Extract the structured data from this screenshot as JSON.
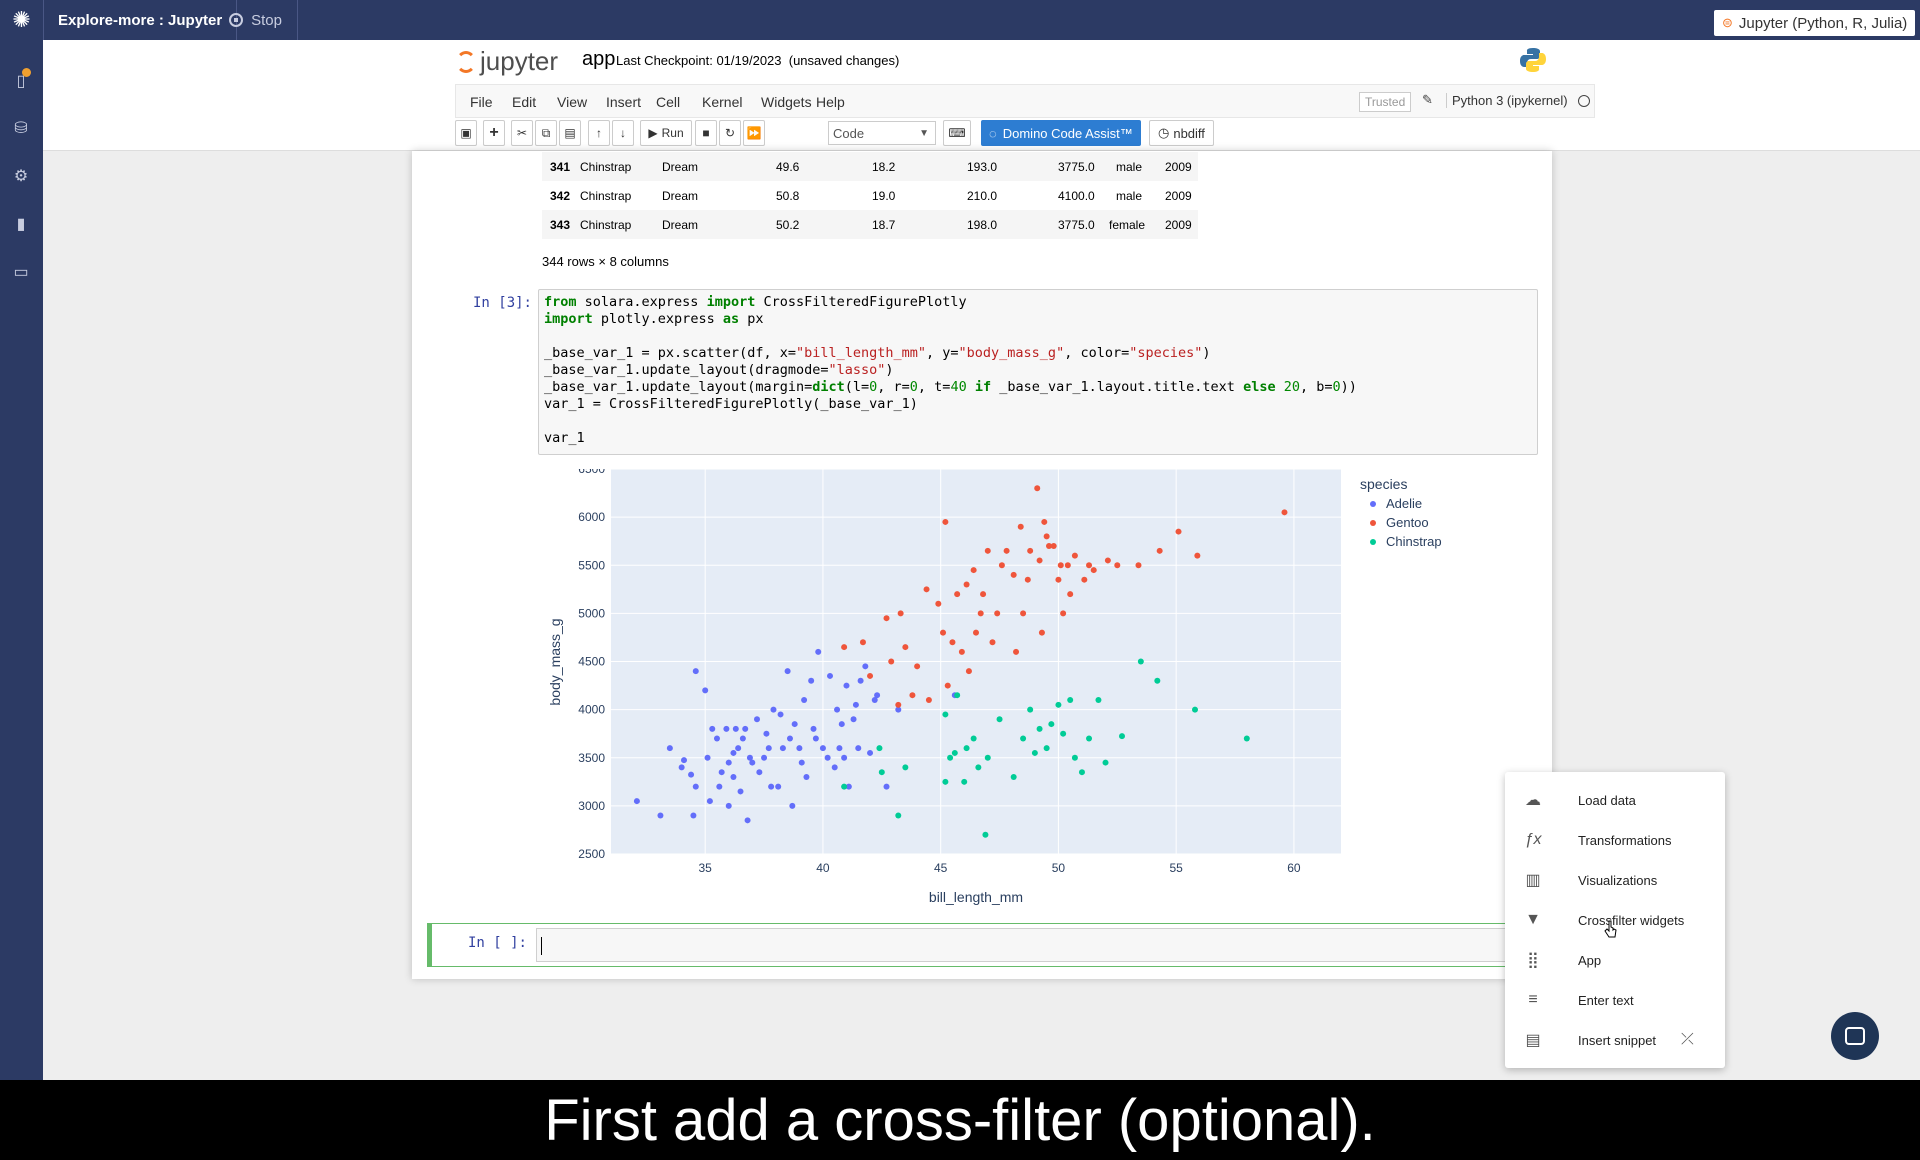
{
  "app": {
    "title": "Explore-more : Jupyter",
    "stop_label": "Stop",
    "env_badge": "Jupyter (Python, R, Julia)"
  },
  "sidebar": {
    "icons": [
      "notebook-icon",
      "database-icon",
      "gear-icon",
      "bar-chart-icon",
      "card-icon"
    ]
  },
  "jupyter": {
    "logo_text": "jupyter",
    "notebook_name": "app",
    "checkpoint": "Last Checkpoint: 01/19/2023",
    "unsaved": "(unsaved changes)",
    "menu": [
      "File",
      "Edit",
      "View",
      "Insert",
      "Cell",
      "Kernel",
      "Widgets",
      "Help"
    ],
    "trusted": "Trusted",
    "kernel": "Python 3 (ipykernel)"
  },
  "toolbar": {
    "run_label": "Run",
    "cell_type": "Code",
    "domino_label": "Domino Code Assist™",
    "nbdiff_label": "nbdiff"
  },
  "dataframe": {
    "rows": [
      {
        "idx": "341",
        "species": "Chinstrap",
        "island": "Dream",
        "bill_length": "49.6",
        "bill_depth": "18.2",
        "flipper": "193.0",
        "mass": "3775.0",
        "sex": "male",
        "year": "2009"
      },
      {
        "idx": "342",
        "species": "Chinstrap",
        "island": "Dream",
        "bill_length": "50.8",
        "bill_depth": "19.0",
        "flipper": "210.0",
        "mass": "4100.0",
        "sex": "male",
        "year": "2009"
      },
      {
        "idx": "343",
        "species": "Chinstrap",
        "island": "Dream",
        "bill_length": "50.2",
        "bill_depth": "18.7",
        "flipper": "198.0",
        "mass": "3775.0",
        "sex": "female",
        "year": "2009"
      }
    ],
    "row_count": "344 rows × 8 columns"
  },
  "cells": {
    "code_prompt": "In [3]:",
    "empty_prompt": "In [ ]:"
  },
  "chart_data": {
    "type": "scatter",
    "xlabel": "bill_length_mm",
    "ylabel": "body_mass_g",
    "xlim": [
      31,
      62
    ],
    "ylim": [
      2500,
      6500
    ],
    "x_ticks": [
      35,
      40,
      45,
      50,
      55,
      60
    ],
    "y_ticks": [
      2500,
      3000,
      3500,
      4000,
      4500,
      5000,
      5500,
      6000,
      6500
    ],
    "grid": true,
    "legend_title": "species",
    "legend_position": "right",
    "series": [
      {
        "name": "Adelie",
        "color": "#636efa",
        "points": [
          [
            32.1,
            3050
          ],
          [
            33.1,
            2900
          ],
          [
            33.5,
            3600
          ],
          [
            34.0,
            3400
          ],
          [
            34.1,
            3475
          ],
          [
            34.4,
            3325
          ],
          [
            34.5,
            2900
          ],
          [
            34.6,
            4400
          ],
          [
            34.6,
            3200
          ],
          [
            35.0,
            4200
          ],
          [
            35.1,
            3500
          ],
          [
            35.2,
            3050
          ],
          [
            35.3,
            3800
          ],
          [
            35.5,
            3700
          ],
          [
            35.6,
            3200
          ],
          [
            35.7,
            3350
          ],
          [
            35.9,
            3800
          ],
          [
            36.0,
            3000
          ],
          [
            36.0,
            3450
          ],
          [
            36.2,
            3550
          ],
          [
            36.2,
            3300
          ],
          [
            36.3,
            3800
          ],
          [
            36.4,
            3600
          ],
          [
            36.5,
            3150
          ],
          [
            36.6,
            3700
          ],
          [
            36.7,
            3800
          ],
          [
            36.8,
            2850
          ],
          [
            36.9,
            3500
          ],
          [
            37.0,
            3450
          ],
          [
            37.2,
            3900
          ],
          [
            37.3,
            3350
          ],
          [
            37.5,
            3500
          ],
          [
            37.6,
            3750
          ],
          [
            37.7,
            3600
          ],
          [
            37.8,
            3200
          ],
          [
            37.9,
            4000
          ],
          [
            38.1,
            3200
          ],
          [
            38.2,
            3950
          ],
          [
            38.3,
            3600
          ],
          [
            38.5,
            4400
          ],
          [
            38.6,
            3700
          ],
          [
            38.7,
            3000
          ],
          [
            38.8,
            3850
          ],
          [
            39.0,
            3600
          ],
          [
            39.1,
            3450
          ],
          [
            39.2,
            4100
          ],
          [
            39.3,
            3300
          ],
          [
            39.5,
            4300
          ],
          [
            39.6,
            3800
          ],
          [
            39.7,
            3700
          ],
          [
            39.8,
            4600
          ],
          [
            40.0,
            3600
          ],
          [
            40.2,
            3500
          ],
          [
            40.3,
            4350
          ],
          [
            40.5,
            3400
          ],
          [
            40.6,
            4000
          ],
          [
            40.7,
            3600
          ],
          [
            40.8,
            3850
          ],
          [
            40.9,
            3500
          ],
          [
            41.0,
            4250
          ],
          [
            41.1,
            3200
          ],
          [
            41.3,
            3900
          ],
          [
            41.4,
            4050
          ],
          [
            41.5,
            3600
          ],
          [
            41.6,
            4300
          ],
          [
            41.8,
            4450
          ],
          [
            42.0,
            3550
          ],
          [
            42.2,
            4100
          ],
          [
            42.3,
            4150
          ],
          [
            42.7,
            3200
          ],
          [
            43.2,
            4000
          ],
          [
            45.6,
            4150
          ]
        ]
      },
      {
        "name": "Gentoo",
        "color": "#ef553b",
        "points": [
          [
            40.9,
            4650
          ],
          [
            41.7,
            4700
          ],
          [
            42.0,
            4350
          ],
          [
            42.7,
            4950
          ],
          [
            42.9,
            4500
          ],
          [
            43.2,
            4050
          ],
          [
            43.3,
            5000
          ],
          [
            43.5,
            4650
          ],
          [
            43.8,
            4150
          ],
          [
            44.0,
            4450
          ],
          [
            44.4,
            5250
          ],
          [
            44.5,
            4100
          ],
          [
            44.9,
            5100
          ],
          [
            45.1,
            4800
          ],
          [
            45.2,
            5950
          ],
          [
            45.3,
            4250
          ],
          [
            45.5,
            4700
          ],
          [
            45.7,
            5200
          ],
          [
            45.9,
            4600
          ],
          [
            46.1,
            5300
          ],
          [
            46.2,
            4400
          ],
          [
            46.4,
            5450
          ],
          [
            46.5,
            4800
          ],
          [
            46.7,
            5000
          ],
          [
            46.8,
            5200
          ],
          [
            47.0,
            5650
          ],
          [
            47.2,
            4700
          ],
          [
            47.4,
            5000
          ],
          [
            47.6,
            5500
          ],
          [
            47.8,
            5650
          ],
          [
            48.1,
            5400
          ],
          [
            48.2,
            4600
          ],
          [
            48.4,
            5900
          ],
          [
            48.5,
            5000
          ],
          [
            48.7,
            5350
          ],
          [
            48.8,
            5650
          ],
          [
            49.1,
            6300
          ],
          [
            49.2,
            5550
          ],
          [
            49.3,
            4800
          ],
          [
            49.4,
            5950
          ],
          [
            49.5,
            5800
          ],
          [
            49.6,
            5700
          ],
          [
            49.8,
            5700
          ],
          [
            50.0,
            5350
          ],
          [
            50.1,
            5500
          ],
          [
            50.2,
            5000
          ],
          [
            50.4,
            5500
          ],
          [
            50.5,
            5200
          ],
          [
            50.7,
            5600
          ],
          [
            51.1,
            5350
          ],
          [
            51.3,
            5500
          ],
          [
            51.5,
            5450
          ],
          [
            52.1,
            5550
          ],
          [
            52.5,
            5500
          ],
          [
            53.4,
            5500
          ],
          [
            54.3,
            5650
          ],
          [
            55.1,
            5850
          ],
          [
            55.9,
            5600
          ],
          [
            59.6,
            6050
          ]
        ]
      },
      {
        "name": "Chinstrap",
        "color": "#00cc96",
        "points": [
          [
            40.9,
            3200
          ],
          [
            42.4,
            3600
          ],
          [
            42.5,
            3350
          ],
          [
            43.2,
            2900
          ],
          [
            43.5,
            3400
          ],
          [
            45.2,
            3250
          ],
          [
            45.2,
            3950
          ],
          [
            45.4,
            3500
          ],
          [
            45.6,
            3550
          ],
          [
            45.7,
            4150
          ],
          [
            46.0,
            3250
          ],
          [
            46.1,
            3600
          ],
          [
            46.4,
            3700
          ],
          [
            46.6,
            3400
          ],
          [
            46.9,
            2700
          ],
          [
            47.0,
            3500
          ],
          [
            47.5,
            3900
          ],
          [
            48.1,
            3300
          ],
          [
            48.5,
            3700
          ],
          [
            48.8,
            4000
          ],
          [
            49.0,
            3550
          ],
          [
            49.2,
            3800
          ],
          [
            49.5,
            3600
          ],
          [
            49.7,
            3850
          ],
          [
            50.0,
            4050
          ],
          [
            50.2,
            3750
          ],
          [
            50.5,
            4100
          ],
          [
            50.7,
            3500
          ],
          [
            51.0,
            3350
          ],
          [
            51.3,
            3700
          ],
          [
            51.7,
            4100
          ],
          [
            52.0,
            3450
          ],
          [
            52.7,
            3725
          ],
          [
            53.5,
            4500
          ],
          [
            54.2,
            4300
          ],
          [
            55.8,
            4000
          ],
          [
            58.0,
            3700
          ]
        ]
      }
    ]
  },
  "popup": {
    "items": [
      {
        "icon": "cloud-upload-icon",
        "glyph": "☁",
        "label": "Load data"
      },
      {
        "icon": "function-icon",
        "glyph": "ƒx",
        "label": "Transformations"
      },
      {
        "icon": "chart-icon",
        "glyph": "▥",
        "label": "Visualizations"
      },
      {
        "icon": "filter-icon",
        "glyph": "▼",
        "label": "Crossfilter widgets"
      },
      {
        "icon": "grid-icon",
        "glyph": "⣿",
        "label": "App"
      },
      {
        "icon": "text-lines-icon",
        "glyph": "≡",
        "label": "Enter text"
      },
      {
        "icon": "snippet-icon",
        "glyph": "▤",
        "label": "Insert snippet"
      }
    ]
  },
  "caption": "First add a cross-filter (optional)."
}
